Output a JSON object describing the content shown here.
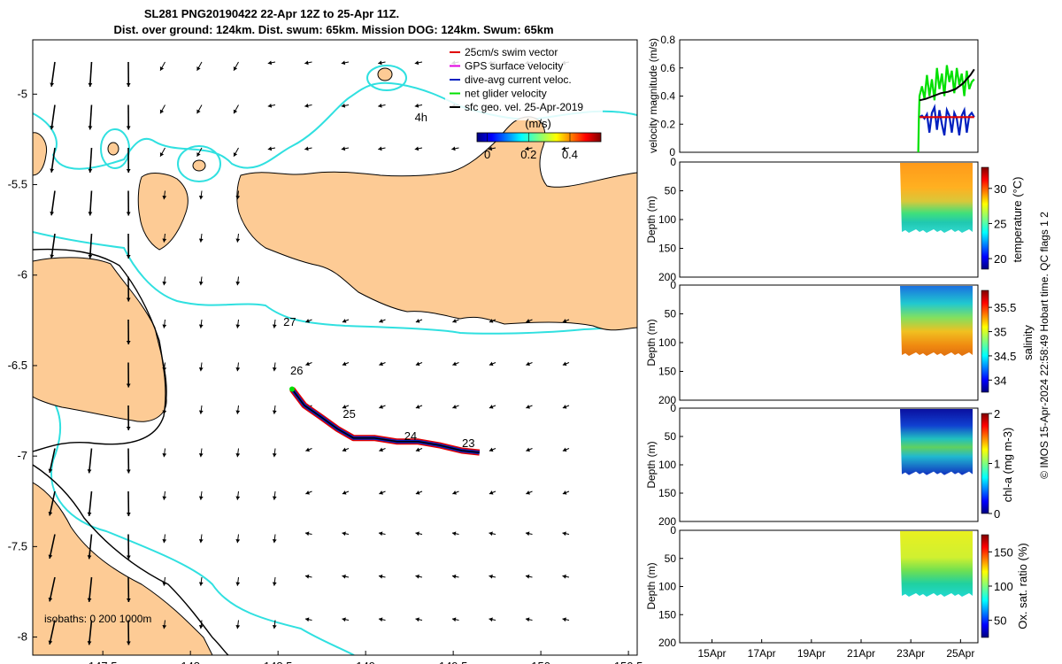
{
  "colors": {
    "land": "#fdcb95",
    "isobath_cyan": "#30e0e0",
    "track_red": "#e00000",
    "track_blue": "#0020c0",
    "green": "#00e000",
    "magenta": "#e000e0",
    "black": "#000000"
  },
  "header": {
    "title_line1": "SL281 PNG20190422 22-Apr 12Z to 25-Apr 11Z.",
    "title_line2": "Dist. over ground: 124km. Dist. swum: 65km. Mission DOG: 124km. Swum: 65km"
  },
  "footer": {
    "credit": "© IMOS 15-Apr-2024 22:58:49 Hobart time. QC flags 1  2"
  },
  "chart_data": [
    {
      "type": "map",
      "panel": "glider-track-map",
      "xlim": [
        147.1,
        150.55
      ],
      "ylim": [
        -8.1,
        -4.7
      ],
      "x_ticks": [
        "147.5",
        "148",
        "148.5",
        "149",
        "149.5",
        "150",
        "150.5"
      ],
      "x_tick_values": [
        147.5,
        148,
        148.5,
        149,
        149.5,
        150,
        150.5
      ],
      "y_ticks": [
        "-5",
        "-5.5",
        "-6",
        "-6.5",
        "-7",
        "-7.5",
        "-8"
      ],
      "y_tick_values": [
        -5,
        -5.5,
        -6,
        -6.5,
        -7,
        -7.5,
        -8
      ],
      "legend": [
        {
          "label": "25cm/s swim vector",
          "color": "#e00000"
        },
        {
          "label": "GPS surface velocity",
          "color": "#e000e0"
        },
        {
          "label": "dive-avg current veloc.",
          "color": "#0020c0"
        },
        {
          "label": "net glider velocity",
          "color": "#00e000"
        },
        {
          "label": "sfc geo. vel. 25-Apr-2019",
          "color": "#000000"
        }
      ],
      "colorbar": {
        "label": "(m/s)",
        "ticks": [
          "0",
          "0.2",
          "0.4"
        ],
        "tick_values": [
          0,
          0.2,
          0.4
        ],
        "range": [
          -0.05,
          0.55
        ]
      },
      "isobath_note": "isobaths: 0   200  1000m",
      "day_labels": [
        {
          "text": "4h",
          "lon": 149.28,
          "lat": -5.15
        },
        {
          "text": "27",
          "lon": 148.53,
          "lat": -6.28
        },
        {
          "text": "26",
          "lon": 148.57,
          "lat": -6.55
        },
        {
          "text": "25",
          "lon": 148.87,
          "lat": -6.79
        },
        {
          "text": "24",
          "lon": 149.22,
          "lat": -6.91
        },
        {
          "text": "23",
          "lon": 149.55,
          "lat": -6.95
        }
      ],
      "track": [
        {
          "lon": 148.58,
          "lat": -6.63
        },
        {
          "lon": 148.65,
          "lat": -6.72
        },
        {
          "lon": 148.74,
          "lat": -6.78
        },
        {
          "lon": 148.84,
          "lat": -6.85
        },
        {
          "lon": 148.93,
          "lat": -6.9
        },
        {
          "lon": 149.05,
          "lat": -6.9
        },
        {
          "lon": 149.18,
          "lat": -6.92
        },
        {
          "lon": 149.3,
          "lat": -6.92
        },
        {
          "lon": 149.42,
          "lat": -6.94
        },
        {
          "lon": 149.55,
          "lat": -6.97
        },
        {
          "lon": 149.65,
          "lat": -6.98
        }
      ]
    },
    {
      "type": "line",
      "panel": "velocity-magnitude",
      "ylabel": "velocity magnitude (m/s)",
      "ylim": [
        0,
        0.8
      ],
      "y_ticks": [
        "0",
        "0.2",
        "0.4",
        "0.6",
        "0.8"
      ],
      "y_tick_values": [
        0,
        0.2,
        0.4,
        0.6,
        0.8
      ],
      "xlim": [
        0,
        12
      ],
      "series": [
        {
          "name": "net glider velocity",
          "color": "#00e000",
          "x": [
            9.6,
            9.62,
            9.65,
            9.75,
            9.85,
            9.95,
            10.05,
            10.15,
            10.25,
            10.35,
            10.45,
            10.55,
            10.65,
            10.75,
            10.85,
            10.95,
            11.05,
            11.15,
            11.25,
            11.35,
            11.45,
            11.55,
            11.65,
            11.75,
            11.85
          ],
          "y": [
            0.0,
            0.22,
            0.4,
            0.47,
            0.38,
            0.55,
            0.4,
            0.52,
            0.37,
            0.6,
            0.45,
            0.56,
            0.4,
            0.62,
            0.5,
            0.58,
            0.42,
            0.6,
            0.48,
            0.56,
            0.4,
            0.58,
            0.45,
            0.5,
            0.52
          ]
        },
        {
          "name": "smoothed speed",
          "color": "#000000",
          "x": [
            9.65,
            9.9,
            10.2,
            10.5,
            10.8,
            11.1,
            11.4,
            11.7,
            11.85
          ],
          "y": [
            0.37,
            0.38,
            0.4,
            0.42,
            0.43,
            0.45,
            0.49,
            0.55,
            0.59
          ]
        },
        {
          "name": "dive-avg current veloc.",
          "color": "#0020c0",
          "x": [
            9.65,
            9.75,
            9.85,
            9.95,
            10.05,
            10.15,
            10.25,
            10.35,
            10.45,
            10.55,
            10.65,
            10.75,
            10.85,
            10.95,
            11.05,
            11.15,
            11.25,
            11.35,
            11.45,
            11.55,
            11.65,
            11.75,
            11.85
          ],
          "y": [
            0.25,
            0.26,
            0.24,
            0.27,
            0.14,
            0.28,
            0.32,
            0.16,
            0.3,
            0.2,
            0.12,
            0.3,
            0.26,
            0.14,
            0.28,
            0.24,
            0.12,
            0.26,
            0.3,
            0.14,
            0.26,
            0.28,
            0.25
          ]
        },
        {
          "name": "25cm/s swim vector",
          "color": "#e00000",
          "x": [
            9.65,
            11.85
          ],
          "y": [
            0.25,
            0.25
          ]
        }
      ]
    },
    {
      "type": "heatmap",
      "panel": "temperature",
      "ylabel": "Depth (m)",
      "ylim": [
        200,
        0
      ],
      "y_ticks": [
        "0",
        "50",
        "100",
        "150",
        "200"
      ],
      "y_tick_values": [
        0,
        50,
        100,
        150,
        200
      ],
      "data_depth_range": [
        0,
        120
      ],
      "colorbar_label": "temperature (°C)",
      "colorbar_ticks": [
        "20",
        "25",
        "30"
      ],
      "colorbar_tick_values": [
        20,
        25,
        30
      ],
      "colorbar_range": [
        18.5,
        33
      ]
    },
    {
      "type": "heatmap",
      "panel": "salinity",
      "ylabel": "Depth (m)",
      "ylim": [
        200,
        0
      ],
      "y_ticks": [
        "0",
        "50",
        "100",
        "150",
        "200"
      ],
      "y_tick_values": [
        0,
        50,
        100,
        150,
        200
      ],
      "data_depth_range": [
        0,
        120
      ],
      "colorbar_label": "salinity",
      "colorbar_ticks": [
        "34",
        "34.5",
        "35",
        "35.5"
      ],
      "colorbar_tick_values": [
        34,
        34.5,
        35,
        35.5
      ],
      "colorbar_range": [
        33.75,
        35.85
      ]
    },
    {
      "type": "heatmap",
      "panel": "chl-a",
      "ylabel": "Depth (m)",
      "ylim": [
        200,
        0
      ],
      "y_ticks": [
        "0",
        "50",
        "100",
        "150",
        "200"
      ],
      "y_tick_values": [
        0,
        50,
        100,
        150,
        200
      ],
      "data_depth_range": [
        0,
        115
      ],
      "colorbar_label": "chl-a (mg m-3)",
      "colorbar_ticks": [
        "0",
        "1",
        "2"
      ],
      "colorbar_tick_values": [
        0,
        1,
        2
      ],
      "colorbar_range": [
        0,
        2
      ]
    },
    {
      "type": "heatmap",
      "panel": "oxygen",
      "ylabel": "Depth (m)",
      "ylim": [
        200,
        0
      ],
      "y_ticks": [
        "0",
        "50",
        "100",
        "150",
        "200"
      ],
      "y_tick_values": [
        0,
        50,
        100,
        150,
        200
      ],
      "data_depth_range": [
        0,
        115
      ],
      "colorbar_label": "Ox. sat. ratio (%)",
      "colorbar_ticks": [
        "50",
        "100",
        "150"
      ],
      "colorbar_tick_values": [
        50,
        100,
        150
      ],
      "colorbar_range": [
        25,
        175
      ],
      "x_ticks": [
        "15Apr",
        "17Apr",
        "19Apr",
        "21Apr",
        "23Apr",
        "25Apr"
      ],
      "x_tick_values": [
        15,
        17,
        19,
        21,
        23,
        25
      ],
      "x_range_days": [
        13.7,
        25.7
      ]
    }
  ]
}
